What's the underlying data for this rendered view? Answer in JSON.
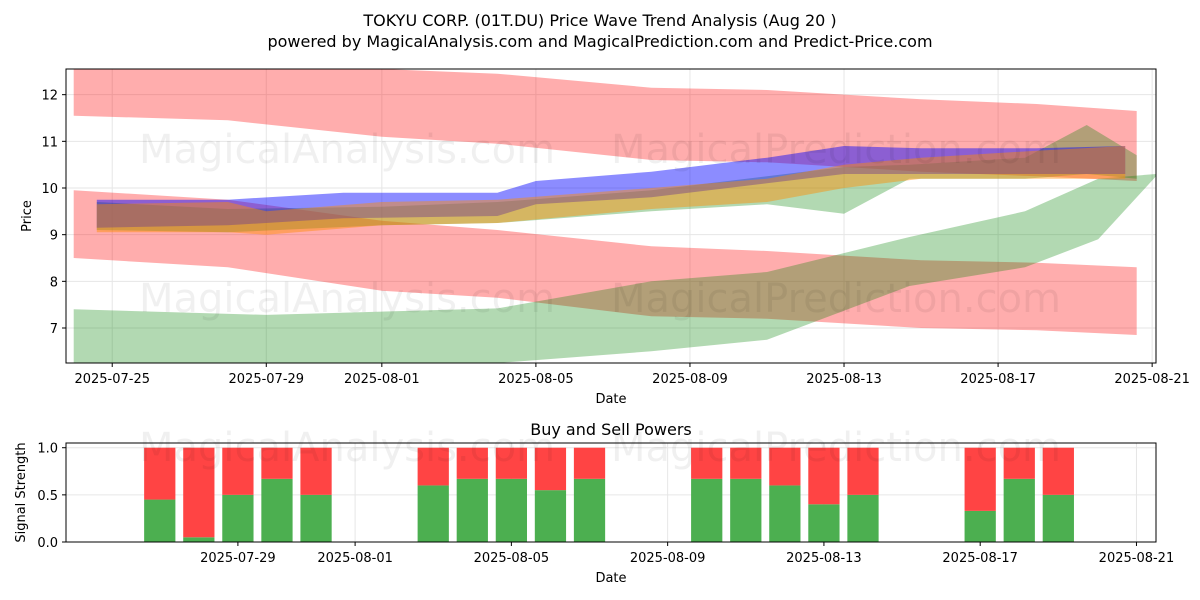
{
  "title_line1": "TOKYU CORP. (01T.DU) Price Wave Trend Analysis (Aug 20 )",
  "title_line2": "powered by MagicalAnalysis.com and MagicalPrediction.com and Predict-Price.com",
  "watermarks": [
    "MagicalAnalysis.com",
    "MagicalPrediction.com"
  ],
  "colors": {
    "red_band": "#ff0000",
    "green_band": "#008000",
    "blue_band": "#0000ff",
    "orange_band": "#ff8c00",
    "buy_bar": "#4caf50",
    "sell_bar": "#ff4444",
    "grid": "#e6e6e6",
    "axis": "#000000"
  },
  "chart_data": [
    {
      "type": "area",
      "title": "",
      "xlabel": "Date",
      "ylabel": "Price",
      "x_range": [
        "2025-07-23.8",
        "2025-08-21.1"
      ],
      "ylim": [
        6.25,
        12.55
      ],
      "y_ticks": [
        7,
        8,
        9,
        10,
        11,
        12
      ],
      "x_ticks": [
        "2025-07-25",
        "2025-07-29",
        "2025-08-01",
        "2025-08-05",
        "2025-08-09",
        "2025-08-13",
        "2025-08-17",
        "2025-08-21"
      ],
      "grid": true,
      "series": [
        {
          "name": "upper red band",
          "color": "red",
          "x": [
            "2025-07-24",
            "2025-07-28",
            "2025-08-01",
            "2025-08-04",
            "2025-08-08",
            "2025-08-11",
            "2025-08-15",
            "2025-08-18",
            "2025-08-20.6"
          ],
          "upper": [
            12.6,
            12.6,
            12.55,
            12.45,
            12.15,
            12.1,
            11.9,
            11.8,
            11.65
          ],
          "lower": [
            11.55,
            11.45,
            11.1,
            10.95,
            10.6,
            10.55,
            10.35,
            10.25,
            10.15
          ]
        },
        {
          "name": "lower red band",
          "color": "red",
          "x": [
            "2025-07-24",
            "2025-07-28",
            "2025-08-01",
            "2025-08-04",
            "2025-08-08",
            "2025-08-11",
            "2025-08-15",
            "2025-08-18",
            "2025-08-20.6"
          ],
          "upper": [
            9.95,
            9.75,
            9.3,
            9.1,
            8.75,
            8.65,
            8.45,
            8.4,
            8.3
          ],
          "lower": [
            8.5,
            8.3,
            7.8,
            7.65,
            7.25,
            7.2,
            7.0,
            6.95,
            6.85
          ]
        },
        {
          "name": "rising green band",
          "color": "green",
          "x": [
            "2025-07-24",
            "2025-07-29",
            "2025-08-04",
            "2025-08-08",
            "2025-08-11",
            "2025-08-14.7",
            "2025-08-17.7",
            "2025-08-19.6",
            "2025-08-21.1"
          ],
          "upper": [
            7.4,
            7.28,
            7.42,
            8.0,
            8.2,
            8.95,
            9.5,
            10.2,
            10.3
          ],
          "lower": [
            6.25,
            6.25,
            6.25,
            6.5,
            6.75,
            7.9,
            8.3,
            8.9,
            10.25
          ]
        },
        {
          "name": "green wave band",
          "color": "green",
          "x": [
            "2025-07-24.6",
            "2025-07-28",
            "2025-08-01",
            "2025-08-04",
            "2025-08-08",
            "2025-08-11",
            "2025-08-13",
            "2025-08-14.7",
            "2025-08-17.7",
            "2025-08-19.3",
            "2025-08-20.6"
          ],
          "upper": [
            9.7,
            9.55,
            9.6,
            9.7,
            9.95,
            10.25,
            10.45,
            10.5,
            10.65,
            11.35,
            10.7
          ],
          "lower": [
            9.1,
            9.05,
            9.2,
            9.25,
            9.5,
            9.65,
            9.45,
            10.2,
            10.2,
            10.3,
            10.2
          ]
        },
        {
          "name": "blue wave band",
          "color": "blue",
          "x": [
            "2025-07-24.6",
            "2025-07-28",
            "2025-07-31",
            "2025-08-04",
            "2025-08-05",
            "2025-08-08",
            "2025-08-11",
            "2025-08-13",
            "2025-08-15",
            "2025-08-18",
            "2025-08-20.3"
          ],
          "upper": [
            9.75,
            9.75,
            9.9,
            9.9,
            10.15,
            10.35,
            10.65,
            10.9,
            10.85,
            10.85,
            10.9
          ],
          "lower": [
            9.15,
            9.2,
            9.35,
            9.4,
            9.65,
            9.8,
            10.1,
            10.3,
            10.3,
            10.3,
            10.3
          ]
        },
        {
          "name": "orange wave band",
          "color": "orange",
          "x": [
            "2025-07-24.6",
            "2025-07-28",
            "2025-07-29",
            "2025-08-01",
            "2025-08-04",
            "2025-08-08",
            "2025-08-11",
            "2025-08-13",
            "2025-08-15",
            "2025-08-18",
            "2025-08-20.3"
          ],
          "upper": [
            9.65,
            9.7,
            9.5,
            9.7,
            9.75,
            10.0,
            10.2,
            10.5,
            10.65,
            10.8,
            10.9
          ],
          "lower": [
            9.05,
            9.05,
            9.0,
            9.2,
            9.25,
            9.55,
            9.7,
            10.0,
            10.2,
            10.2,
            10.2
          ]
        }
      ]
    },
    {
      "type": "bar",
      "title": "Buy and Sell Powers",
      "xlabel": "Date",
      "ylabel": "Signal Strength",
      "x_range": [
        "2025-07-24.6",
        "2025-08-21.5"
      ],
      "ylim": [
        0,
        1.05
      ],
      "y_ticks": [
        "0.0",
        "0.5",
        "1.0"
      ],
      "x_ticks": [
        "2025-07-29",
        "2025-08-01",
        "2025-08-05",
        "2025-08-09",
        "2025-08-13",
        "2025-08-17",
        "2025-08-21"
      ],
      "grid": true,
      "categories": [
        "2025-07-27",
        "2025-07-28",
        "2025-07-29",
        "2025-07-30",
        "2025-07-31",
        "2025-08-03",
        "2025-08-04",
        "2025-08-05",
        "2025-08-06",
        "2025-08-07",
        "2025-08-10",
        "2025-08-11",
        "2025-08-12",
        "2025-08-13",
        "2025-08-14",
        "2025-08-17",
        "2025-08-18",
        "2025-08-19"
      ],
      "series": [
        {
          "name": "Buy",
          "color": "green",
          "values": [
            0.45,
            0.05,
            0.5,
            0.67,
            0.5,
            0.6,
            0.67,
            0.67,
            0.55,
            0.67,
            0.67,
            0.67,
            0.6,
            0.4,
            0.5,
            0.33,
            0.67,
            0.5
          ]
        },
        {
          "name": "Sell",
          "color": "red",
          "values": [
            0.55,
            0.95,
            0.5,
            0.33,
            0.5,
            0.4,
            0.33,
            0.33,
            0.45,
            0.33,
            0.33,
            0.33,
            0.4,
            0.6,
            0.5,
            0.67,
            0.33,
            0.5
          ]
        }
      ]
    }
  ]
}
